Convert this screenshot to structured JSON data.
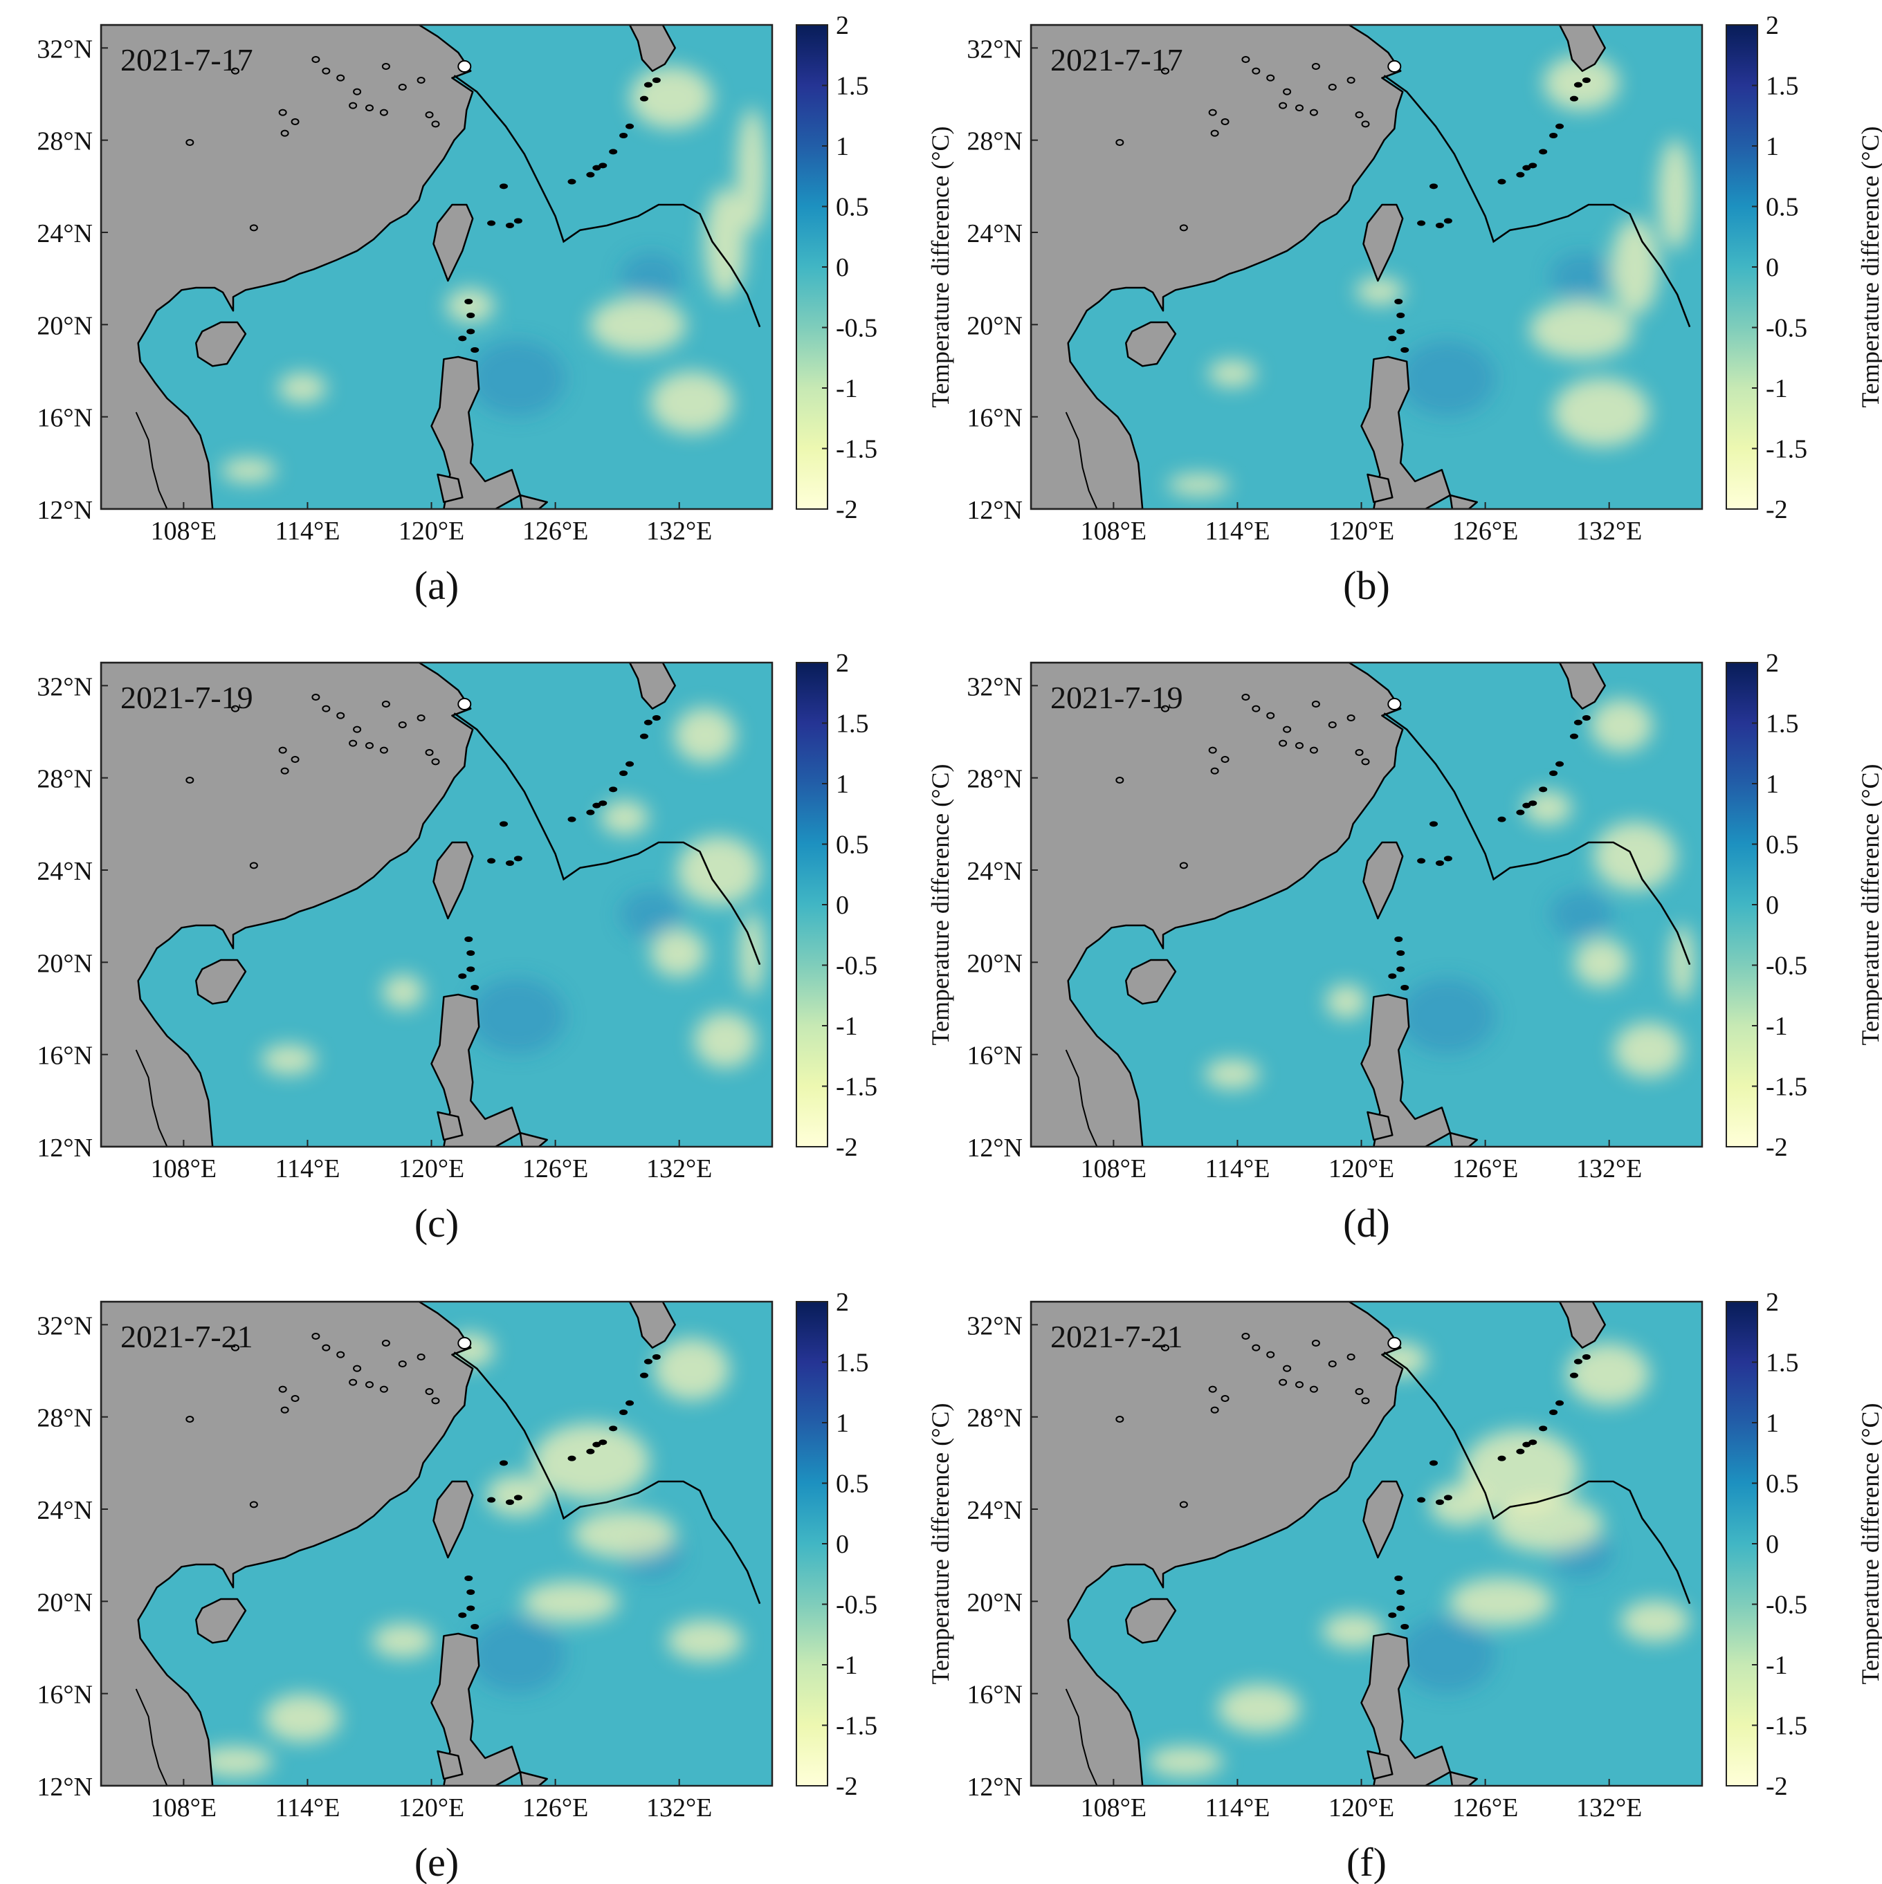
{
  "figure": {
    "colorbar": {
      "label": "Temperature difference (°C)",
      "ticks": [
        "2",
        "1.5",
        "1",
        "0.5",
        "0",
        "-0.5",
        "-1",
        "-1.5",
        "-2"
      ],
      "range": [
        -2,
        2
      ],
      "colors": [
        "#FFFFD9",
        "#EDF8B1",
        "#C7E9B4",
        "#7FCDBB",
        "#41B6C4",
        "#1D91C0",
        "#225EA8",
        "#253494",
        "#081D58"
      ]
    },
    "axes": {
      "lat_ticks": [
        "32°N",
        "28°N",
        "24°N",
        "20°N",
        "16°N",
        "12°N"
      ],
      "lon_ticks": [
        "108°E",
        "114°E",
        "120°E",
        "126°E",
        "132°E"
      ]
    },
    "map_colors": {
      "land": "#9C9C9C",
      "ocean_base": "#45B6C6",
      "warm_patch": "#F5F3B8",
      "cool_patch": "#2C86BE",
      "coast": "#000000"
    },
    "panels": [
      {
        "label": "(a)",
        "date": "2021-7-17"
      },
      {
        "label": "(b)",
        "date": "2021-7-17"
      },
      {
        "label": "(c)",
        "date": "2021-7-19"
      },
      {
        "label": "(d)",
        "date": "2021-7-19"
      },
      {
        "label": "(e)",
        "date": "2021-7-21"
      },
      {
        "label": "(f)",
        "date": "2021-7-21"
      }
    ]
  }
}
